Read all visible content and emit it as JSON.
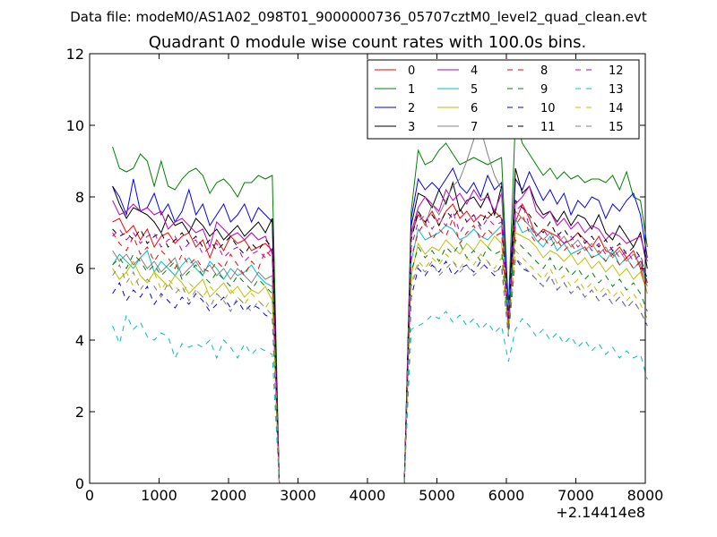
{
  "chart_data": {
    "type": "line",
    "suptitle": "Data file: modeM0/AS1A02_098T01_9000000736_05707cztM0_level2_quad_clean.evt",
    "title": "Quadrant 0 module wise count rates with 100.0s bins.",
    "xlabel": "",
    "ylabel": "",
    "x_offset_label": "+2.14414e8",
    "xlim": [
      0,
      8000
    ],
    "ylim": [
      0,
      12
    ],
    "xticks": [
      0,
      1000,
      2000,
      3000,
      4000,
      5000,
      6000,
      7000,
      8000
    ],
    "yticks": [
      0,
      2,
      4,
      6,
      8,
      10,
      12
    ],
    "xtick_labels": [
      "0",
      "1000",
      "2000",
      "3000",
      "4000",
      "5000",
      "6000",
      "7000",
      "8000"
    ],
    "ytick_labels": [
      "0",
      "2",
      "4",
      "6",
      "8",
      "10",
      "12"
    ],
    "legend_position": "top-right",
    "legend_columns": 4,
    "x_start": 330,
    "x_step": 100,
    "gap_start_index": 24,
    "gap_end_index": 43,
    "series": [
      {
        "name": "0",
        "color": "#ff0000",
        "dash": "solid",
        "pre": [
          7.3,
          7.4,
          7.0,
          7.2,
          6.8,
          7.1,
          6.6,
          6.9,
          7.0,
          6.7,
          6.9,
          7.0,
          6.6,
          6.8,
          6.3,
          6.8,
          6.5,
          6.9,
          6.7,
          6.8,
          6.5,
          6.6,
          6.7,
          6.5
        ],
        "post": [
          6.9,
          7.5,
          7.3,
          7.6,
          7.2,
          7.6,
          7.8,
          7.4,
          7.6,
          7.3,
          7.5,
          7.4,
          7.6,
          7.4,
          4.6,
          7.3,
          7.8,
          7.4,
          6.9,
          7.1,
          7.0,
          6.9,
          6.7,
          6.8,
          7.0,
          6.8,
          6.6,
          6.9,
          6.5,
          6.4,
          6.6,
          6.3,
          6.5,
          6.0,
          5.3
        ]
      },
      {
        "name": "1",
        "color": "#008000",
        "dash": "solid",
        "pre": [
          9.4,
          8.8,
          8.7,
          8.8,
          9.2,
          9.0,
          8.3,
          9.0,
          8.3,
          8.2,
          8.5,
          8.7,
          8.8,
          8.6,
          8.1,
          8.4,
          8.5,
          8.3,
          8.0,
          8.4,
          8.4,
          8.6,
          8.5,
          8.6
        ],
        "post": [
          7.6,
          9.3,
          8.9,
          9.0,
          9.3,
          9.5,
          9.2,
          8.9,
          9.0,
          9.1,
          9.0,
          8.9,
          9.0,
          9.1,
          4.9,
          10.2,
          9.5,
          9.2,
          8.9,
          8.6,
          8.8,
          8.5,
          8.7,
          8.5,
          8.6,
          8.4,
          8.5,
          8.5,
          8.4,
          8.6,
          8.2,
          8.7,
          8.0,
          7.9,
          6.6
        ]
      },
      {
        "name": "2",
        "color": "#0000ff",
        "dash": "solid",
        "pre": [
          8.3,
          8.0,
          7.5,
          8.5,
          7.6,
          7.7,
          8.1,
          7.5,
          7.8,
          7.3,
          7.6,
          8.2,
          7.5,
          7.8,
          7.2,
          7.5,
          7.8,
          7.3,
          7.5,
          7.8,
          7.3,
          7.7,
          7.5,
          7.3
        ],
        "post": [
          7.4,
          8.5,
          8.2,
          8.4,
          8.2,
          8.5,
          8.8,
          8.3,
          8.1,
          8.4,
          8.0,
          8.6,
          8.2,
          8.4,
          4.9,
          8.5,
          8.2,
          8.7,
          8.3,
          7.9,
          8.2,
          7.8,
          8.1,
          7.5,
          7.9,
          7.7,
          8.0,
          7.9,
          7.4,
          7.8,
          7.6,
          7.9,
          8.1,
          7.5,
          6.3
        ]
      },
      {
        "name": "3",
        "color": "#000000",
        "dash": "solid",
        "pre": [
          8.3,
          7.8,
          7.4,
          7.7,
          7.6,
          7.5,
          7.3,
          7.0,
          7.5,
          7.2,
          7.3,
          7.0,
          7.4,
          7.2,
          6.9,
          7.1,
          6.8,
          7.0,
          7.2,
          6.9,
          7.1,
          7.3,
          7.0,
          7.4
        ],
        "post": [
          7.2,
          8.1,
          8.0,
          7.7,
          8.2,
          7.8,
          8.4,
          7.6,
          7.9,
          8.0,
          7.7,
          8.1,
          7.5,
          8.3,
          4.3,
          8.8,
          8.1,
          8.3,
          7.8,
          7.5,
          7.6,
          7.3,
          7.6,
          7.2,
          7.5,
          7.4,
          7.1,
          7.5,
          7.0,
          6.8,
          7.2,
          6.9,
          6.6,
          7.0,
          6.0
        ]
      },
      {
        "name": "4",
        "color": "#bf00bf",
        "dash": "solid",
        "pre": [
          7.9,
          7.5,
          7.6,
          7.8,
          7.6,
          7.7,
          7.5,
          7.6,
          7.1,
          7.3,
          7.4,
          7.2,
          7.0,
          7.1,
          6.6,
          7.3,
          7.1,
          6.9,
          7.0,
          6.8,
          7.0,
          6.8,
          6.9,
          6.4
        ],
        "post": [
          7.0,
          7.7,
          8.0,
          7.8,
          7.6,
          8.2,
          7.9,
          8.1,
          7.8,
          8.2,
          7.9,
          8.0,
          7.6,
          8.1,
          4.5,
          7.8,
          8.0,
          8.3,
          7.6,
          7.4,
          7.6,
          7.2,
          7.4,
          7.1,
          7.3,
          7.0,
          7.2,
          7.1,
          6.8,
          7.0,
          6.9,
          6.7,
          6.8,
          6.9,
          6.2
        ]
      },
      {
        "name": "5",
        "color": "#00bfbf",
        "dash": "solid",
        "pre": [
          6.1,
          6.4,
          6.2,
          6.0,
          6.3,
          6.5,
          5.9,
          6.2,
          6.0,
          5.8,
          6.1,
          6.3,
          6.0,
          5.8,
          6.2,
          6.0,
          5.7,
          6.0,
          5.8,
          5.9,
          6.1,
          5.8,
          5.6,
          5.5
        ],
        "post": [
          6.2,
          7.1,
          6.8,
          6.9,
          7.0,
          7.2,
          7.1,
          6.8,
          6.9,
          7.1,
          6.9,
          6.8,
          7.0,
          7.2,
          4.8,
          7.4,
          7.0,
          7.1,
          6.8,
          6.6,
          6.9,
          6.5,
          6.7,
          6.4,
          6.5,
          6.6,
          6.3,
          6.4,
          6.2,
          6.5,
          6.1,
          6.3,
          6.0,
          6.2,
          5.6
        ]
      },
      {
        "name": "6",
        "color": "#bfbf00",
        "dash": "solid",
        "pre": [
          6.0,
          5.7,
          5.9,
          6.2,
          5.8,
          5.6,
          5.9,
          5.7,
          5.5,
          5.8,
          5.6,
          5.3,
          5.5,
          5.7,
          5.2,
          5.4,
          5.6,
          5.3,
          5.5,
          5.2,
          5.4,
          5.3,
          5.5,
          5.1
        ],
        "post": [
          5.8,
          6.7,
          6.4,
          6.6,
          6.5,
          6.8,
          6.6,
          6.4,
          6.7,
          6.5,
          6.8,
          6.6,
          6.9,
          6.7,
          4.4,
          7.0,
          6.9,
          6.8,
          6.6,
          6.3,
          6.5,
          6.4,
          6.2,
          6.4,
          6.1,
          6.3,
          6.0,
          6.2,
          5.9,
          6.1,
          5.8,
          6.0,
          5.7,
          5.9,
          5.3
        ]
      },
      {
        "name": "7",
        "color": "#808080",
        "dash": "solid",
        "pre": [
          6.5,
          6.2,
          6.4,
          6.1,
          6.3,
          6.0,
          6.2,
          5.9,
          6.1,
          6.3,
          5.8,
          6.0,
          6.2,
          5.9,
          6.1,
          5.8,
          6.0,
          5.7,
          6.0,
          5.8,
          5.6,
          5.9,
          5.7,
          5.8
        ],
        "post": [
          6.9,
          7.6,
          7.2,
          7.8,
          7.5,
          7.9,
          8.3,
          8.5,
          9.0,
          9.6,
          9.9,
          9.2,
          8.6,
          8.2,
          4.2,
          7.6,
          7.4,
          7.2,
          7.0,
          6.8,
          7.0,
          6.7,
          6.9,
          6.6,
          6.8,
          6.5,
          6.7,
          6.4,
          6.6,
          6.3,
          6.5,
          6.2,
          6.4,
          6.1,
          5.5
        ]
      },
      {
        "name": "8",
        "color": "#ff0000",
        "dash": "dashed",
        "pre": [
          7.0,
          6.7,
          6.5,
          6.9,
          6.4,
          6.6,
          6.2,
          6.5,
          6.3,
          6.0,
          6.4,
          6.1,
          6.3,
          6.0,
          5.9,
          6.2,
          6.0,
          6.4,
          6.1,
          5.8,
          6.2,
          6.0,
          6.5,
          6.3
        ],
        "post": [
          6.3,
          7.0,
          7.3,
          6.8,
          7.1,
          6.9,
          7.4,
          6.7,
          7.0,
          7.2,
          6.8,
          7.1,
          6.9,
          7.0,
          4.4,
          7.2,
          7.5,
          7.0,
          6.7,
          6.9,
          6.6,
          6.8,
          6.5,
          6.7,
          6.4,
          6.6,
          6.3,
          6.5,
          6.2,
          6.4,
          6.1,
          6.3,
          6.0,
          6.2,
          5.5
        ]
      },
      {
        "name": "9",
        "color": "#008000",
        "dash": "dashed",
        "pre": [
          6.1,
          6.3,
          6.0,
          6.4,
          6.2,
          5.9,
          6.1,
          5.8,
          6.0,
          6.2,
          5.7,
          5.9,
          6.1,
          5.8,
          5.6,
          5.9,
          5.7,
          5.5,
          5.8,
          5.6,
          5.4,
          5.7,
          5.5,
          5.3
        ],
        "post": [
          5.9,
          6.6,
          6.3,
          6.5,
          6.2,
          6.6,
          6.4,
          6.7,
          6.3,
          6.5,
          6.2,
          6.6,
          6.4,
          6.5,
          4.3,
          6.8,
          6.6,
          6.4,
          6.2,
          6.0,
          6.3,
          5.9,
          6.1,
          5.8,
          6.0,
          5.7,
          5.9,
          5.6,
          5.8,
          5.5,
          5.7,
          5.4,
          5.6,
          5.3,
          4.8
        ]
      },
      {
        "name": "10",
        "color": "#0000ff",
        "dash": "dashed",
        "pre": [
          5.3,
          5.6,
          5.1,
          5.4,
          5.2,
          5.5,
          5.0,
          5.3,
          5.1,
          4.9,
          5.2,
          5.0,
          5.3,
          5.1,
          4.8,
          5.0,
          5.2,
          4.9,
          5.1,
          4.8,
          5.0,
          4.9,
          4.7,
          4.6
        ],
        "post": [
          5.2,
          6.0,
          5.8,
          6.1,
          5.9,
          6.2,
          5.8,
          6.0,
          6.1,
          5.9,
          6.2,
          6.0,
          5.8,
          6.1,
          4.1,
          6.3,
          6.0,
          5.9,
          5.7,
          5.5,
          5.8,
          5.4,
          5.6,
          5.3,
          5.5,
          5.2,
          5.4,
          5.1,
          5.3,
          5.0,
          5.2,
          4.9,
          5.1,
          4.8,
          4.4
        ]
      },
      {
        "name": "11",
        "color": "#000000",
        "dash": "dashed",
        "pre": [
          7.1,
          6.9,
          7.0,
          6.8,
          7.1,
          6.7,
          6.9,
          7.0,
          6.6,
          6.8,
          7.0,
          6.7,
          6.9,
          6.6,
          6.8,
          6.5,
          6.7,
          6.9,
          6.6,
          6.4,
          6.7,
          6.5,
          6.8,
          6.6
        ],
        "post": [
          6.8,
          7.6,
          7.3,
          7.5,
          7.2,
          7.6,
          7.4,
          7.7,
          7.3,
          7.5,
          7.2,
          7.6,
          7.4,
          7.5,
          4.6,
          7.9,
          7.7,
          7.5,
          7.2,
          7.0,
          7.3,
          6.9,
          7.1,
          6.8,
          7.0,
          6.7,
          6.9,
          6.6,
          6.8,
          6.5,
          6.7,
          6.4,
          6.6,
          6.3,
          5.7
        ]
      },
      {
        "name": "12",
        "color": "#bf00bf",
        "dash": "dashed",
        "pre": [
          6.9,
          7.1,
          6.8,
          7.0,
          6.7,
          6.9,
          7.0,
          6.6,
          6.8,
          6.9,
          6.5,
          6.7,
          6.8,
          6.4,
          6.6,
          6.7,
          6.3,
          6.5,
          6.6,
          6.2,
          6.4,
          6.5,
          6.3,
          6.6
        ],
        "post": [
          6.6,
          7.3,
          7.5,
          7.1,
          7.4,
          7.2,
          7.6,
          7.0,
          7.3,
          7.5,
          7.1,
          7.4,
          7.2,
          7.3,
          4.4,
          7.6,
          7.8,
          7.2,
          6.9,
          7.1,
          6.8,
          7.0,
          6.7,
          6.9,
          6.6,
          6.8,
          6.5,
          6.7,
          6.4,
          6.6,
          6.3,
          6.5,
          6.2,
          6.4,
          5.6
        ]
      },
      {
        "name": "13",
        "color": "#00bfbf",
        "dash": "dashed",
        "pre": [
          4.4,
          3.9,
          4.7,
          4.3,
          4.5,
          4.1,
          4.0,
          4.2,
          4.1,
          3.5,
          3.9,
          3.8,
          3.9,
          3.8,
          4.0,
          3.5,
          4.0,
          3.8,
          3.5,
          3.9,
          3.6,
          3.8,
          3.7,
          3.6
        ],
        "post": [
          4.3,
          4.4,
          4.5,
          4.7,
          4.6,
          4.8,
          4.5,
          4.7,
          4.4,
          4.6,
          4.3,
          4.5,
          4.2,
          4.4,
          3.4,
          4.3,
          4.6,
          4.4,
          4.1,
          4.3,
          4.0,
          4.2,
          3.9,
          4.1,
          3.8,
          4.0,
          3.7,
          3.9,
          3.6,
          3.8,
          3.5,
          3.7,
          3.5,
          3.6,
          2.9
        ]
      },
      {
        "name": "14",
        "color": "#bfbf00",
        "dash": "dashed",
        "pre": [
          6.0,
          5.7,
          5.9,
          5.5,
          5.8,
          5.6,
          5.9,
          5.4,
          5.7,
          5.5,
          5.3,
          5.6,
          5.4,
          5.2,
          5.5,
          5.3,
          5.1,
          5.4,
          5.2,
          5.0,
          5.3,
          5.1,
          4.9,
          5.2
        ],
        "post": [
          5.6,
          6.2,
          6.0,
          6.3,
          6.1,
          6.4,
          6.2,
          6.0,
          6.3,
          6.1,
          6.4,
          6.2,
          6.0,
          6.3,
          4.2,
          6.5,
          6.3,
          6.1,
          5.9,
          5.7,
          6.0,
          5.6,
          5.8,
          5.5,
          5.7,
          5.4,
          5.6,
          5.3,
          5.5,
          5.2,
          5.4,
          5.1,
          5.3,
          5.0,
          4.6
        ]
      },
      {
        "name": "15",
        "color": "#808080",
        "dash": "dashed",
        "pre": [
          5.8,
          6.1,
          5.6,
          5.9,
          5.4,
          5.7,
          5.5,
          5.2,
          5.6,
          5.3,
          5.5,
          5.1,
          5.4,
          5.2,
          4.9,
          5.3,
          5.1,
          4.8,
          5.2,
          5.0,
          4.8,
          5.1,
          4.9,
          4.7
        ],
        "post": [
          5.5,
          6.1,
          5.9,
          6.2,
          5.8,
          6.0,
          6.2,
          5.9,
          6.1,
          5.8,
          6.0,
          6.2,
          5.9,
          6.0,
          4.1,
          6.3,
          6.1,
          5.9,
          5.7,
          5.5,
          5.8,
          5.4,
          5.6,
          5.3,
          5.5,
          5.2,
          5.4,
          5.1,
          5.3,
          5.0,
          5.2,
          4.9,
          5.1,
          4.8,
          4.4
        ]
      }
    ]
  }
}
